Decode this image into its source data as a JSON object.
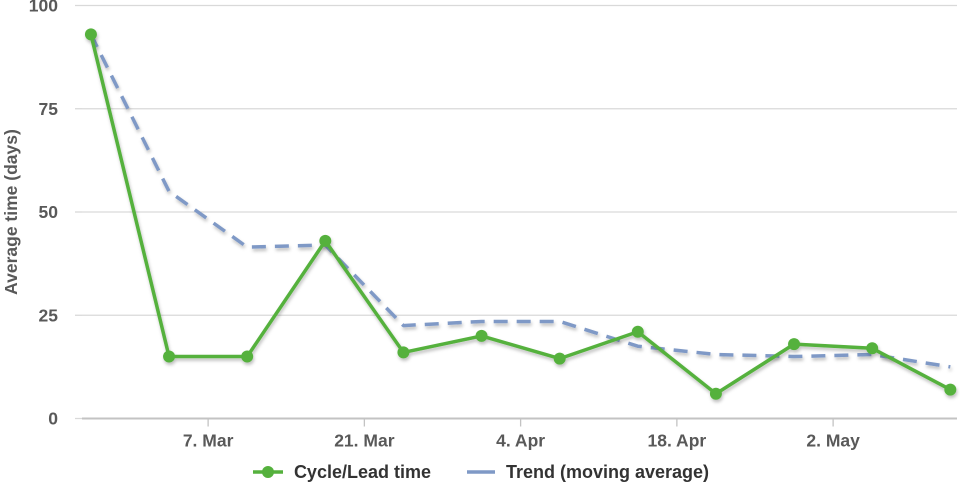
{
  "chart_data": {
    "type": "line",
    "ylabel": "Average time (days)",
    "xlabel": "",
    "ylim": [
      0,
      100
    ],
    "xlim": [
      -0.8,
      77.6
    ],
    "x_unit": "days (weekly data points)",
    "grid": "horizontal",
    "legend_position": "bottom-center",
    "y_ticks": [
      0,
      25,
      50,
      75,
      100
    ],
    "x_ticks": [
      {
        "pos": 10.5,
        "label": "7. Mar"
      },
      {
        "pos": 24.5,
        "label": "21. Mar"
      },
      {
        "pos": 38.5,
        "label": "4. Apr"
      },
      {
        "pos": 52.5,
        "label": "18. Apr"
      },
      {
        "pos": 66.5,
        "label": "2. May"
      }
    ],
    "x_days": [
      0,
      7,
      14,
      21,
      28,
      35,
      42,
      49,
      56,
      63,
      70,
      77
    ],
    "series": [
      {
        "name": "Cycle/Lead time",
        "color": "#55b13d",
        "style": "solid",
        "marker": "circle",
        "values": [
          93,
          15,
          15,
          43,
          16,
          20,
          14.5,
          21,
          6,
          18,
          17,
          7
        ]
      },
      {
        "name": "Trend (moving average)",
        "color": "#7f99c6",
        "style": "dashed",
        "marker": "none",
        "values": [
          93,
          55,
          41.5,
          42,
          22.5,
          23.5,
          23.5,
          17.5,
          15.5,
          15,
          15.5,
          12.5
        ]
      }
    ]
  },
  "colors": {
    "gridline": "#d9d9d9",
    "axis": "#c3c3c3",
    "tick_label": "#595959",
    "legend_text": "#333333",
    "background": "#ffffff"
  }
}
